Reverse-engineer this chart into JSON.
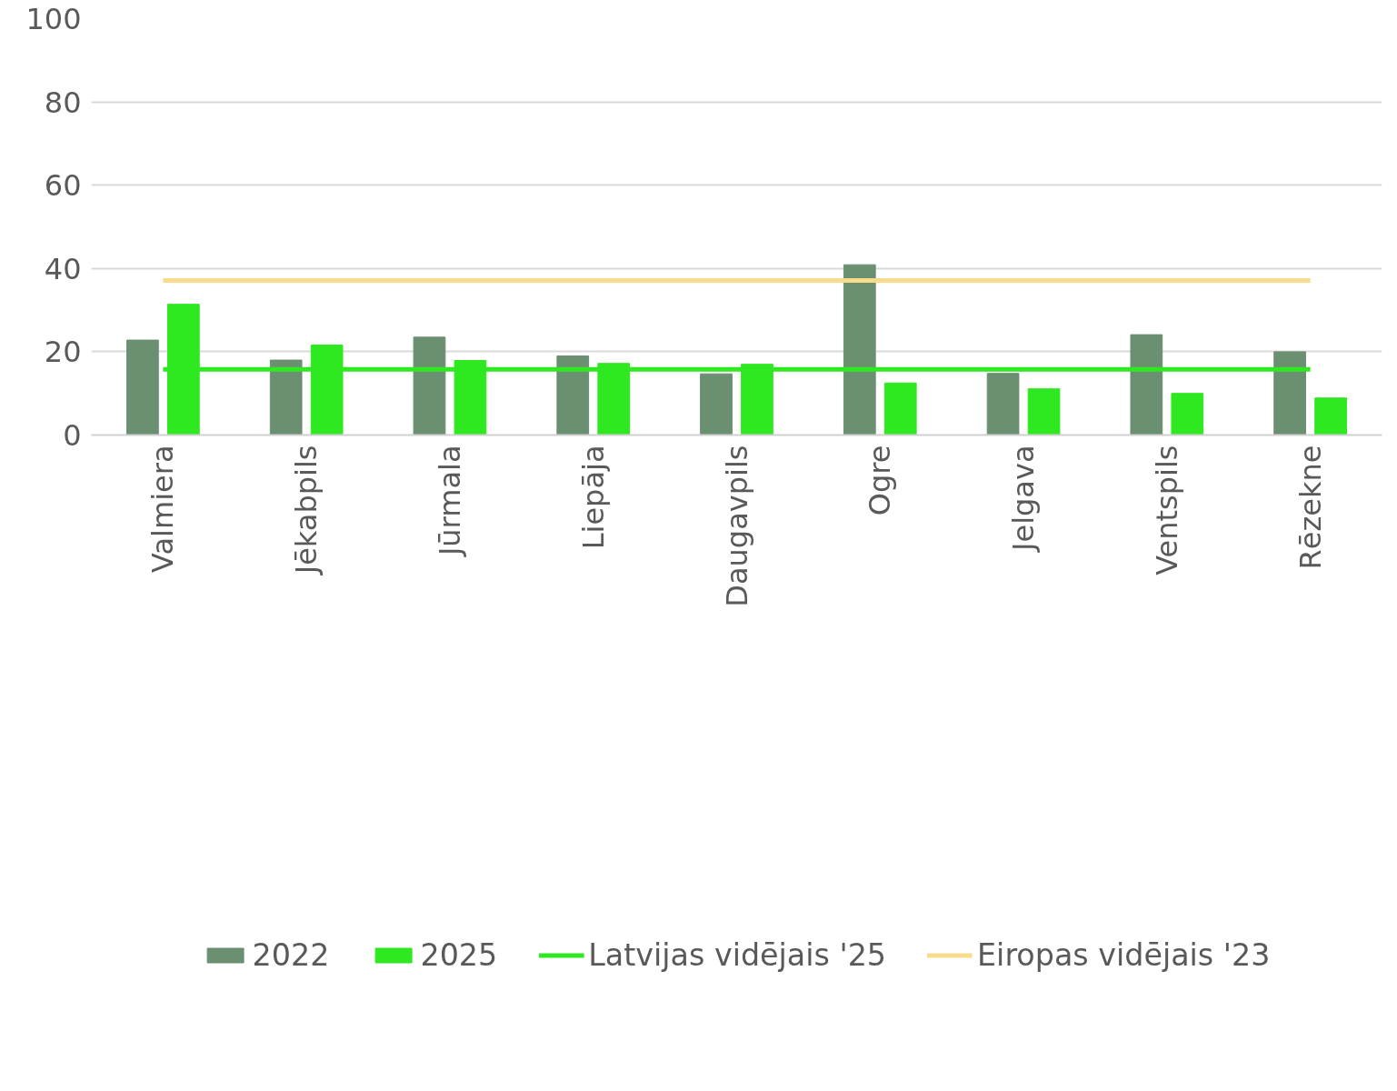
{
  "chart_data": {
    "type": "bar",
    "categories": [
      "Valmiera",
      "Jēkabpils",
      "Jūrmala",
      "Liepāja",
      "Daugavpils",
      "Ogre",
      "Jelgava",
      "Ventspils",
      "Rēzekne"
    ],
    "series": [
      {
        "name": "2022",
        "color": "#6b8f71",
        "values": [
          22.8,
          18.0,
          23.5,
          19.0,
          14.7,
          40.9,
          14.8,
          24.1,
          20.0
        ]
      },
      {
        "name": "2025",
        "color": "#2ee820",
        "values": [
          31.4,
          21.6,
          17.9,
          17.2,
          17.0,
          12.5,
          11.1,
          10.0,
          8.9
        ]
      },
      {
        "name": "Latvijas vidējais '25",
        "type": "line",
        "color": "#2ee820",
        "values": [
          15.8,
          15.8,
          15.8,
          15.8,
          15.8,
          15.8,
          15.8,
          15.8,
          15.8
        ]
      },
      {
        "name": "Eiropas vidējais '23",
        "type": "line",
        "color": "#f8dc8c",
        "values": [
          37.1,
          37.1,
          37.1,
          37.1,
          37.1,
          37.1,
          37.1,
          37.1,
          37.1
        ]
      }
    ],
    "ylim": [
      0,
      100
    ],
    "yticks": [
      0,
      20,
      40,
      60,
      80,
      100
    ],
    "grid": "y",
    "legend": "bottom"
  }
}
